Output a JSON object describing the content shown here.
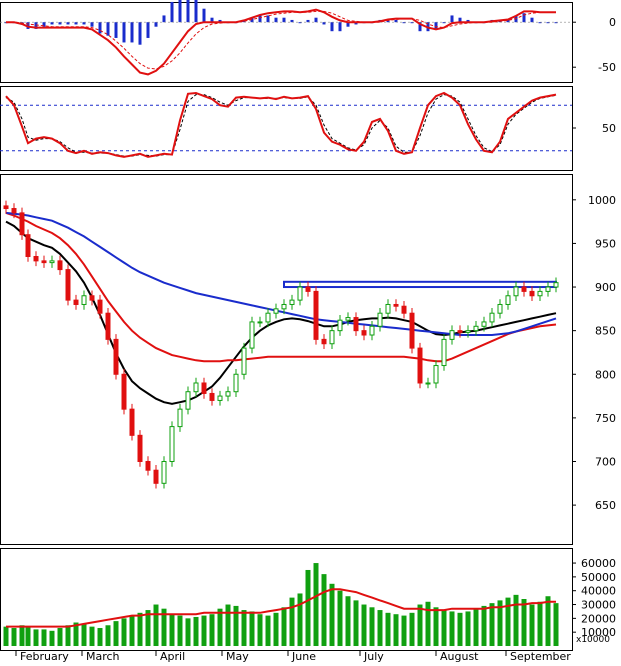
{
  "chart_data": [
    {
      "panel": "macd",
      "type": "line",
      "y_ticks": [
        0,
        -50
      ],
      "ylim": [
        -62,
        18
      ],
      "x": [
        0,
        8,
        16,
        22,
        30,
        38,
        46,
        54,
        62,
        70,
        78,
        86,
        94,
        102,
        110,
        118,
        126,
        134,
        142,
        150,
        158,
        166,
        174,
        182,
        190,
        198,
        206,
        214,
        222,
        230,
        238,
        246,
        254,
        262,
        270,
        278,
        286,
        294,
        302,
        310,
        318,
        326,
        334,
        342,
        350,
        358,
        366,
        374,
        382,
        390,
        398,
        406,
        414,
        422,
        430,
        438,
        446,
        454,
        462,
        470,
        478,
        486,
        494,
        502,
        510,
        518,
        526,
        534,
        542,
        550
      ],
      "series": [
        {
          "role": "macd",
          "color": "#e01010",
          "values": [
            0,
            0,
            -2,
            -5,
            -6,
            -6,
            -6,
            -6,
            -6,
            -6,
            -6,
            -8,
            -14,
            -20,
            -28,
            -38,
            -47,
            -56,
            -58,
            -54,
            -46,
            -34,
            -22,
            -10,
            -2,
            0,
            0,
            0,
            0,
            0,
            2,
            5,
            8,
            10,
            11,
            12,
            12,
            11,
            12,
            14,
            11,
            6,
            2,
            0,
            0,
            0,
            0,
            1,
            3,
            4,
            4,
            4,
            -2,
            -6,
            -8,
            -6,
            -1,
            0,
            0,
            0,
            0,
            1,
            2,
            3,
            7,
            12,
            12,
            11,
            11,
            11
          ]
        },
        {
          "role": "signal",
          "color": "#e01010",
          "dashed": true,
          "values": [
            0,
            0,
            -1,
            -2,
            -3,
            -4,
            -5,
            -5,
            -5,
            -5,
            -5,
            -6,
            -9,
            -14,
            -21,
            -29,
            -38,
            -46,
            -51,
            -52,
            -49,
            -43,
            -34,
            -23,
            -13,
            -6,
            -2,
            -1,
            0,
            0,
            1,
            3,
            5,
            7,
            9,
            10,
            11,
            11,
            11,
            12,
            12,
            10,
            6,
            2,
            1,
            0,
            0,
            0,
            2,
            3,
            4,
            4,
            2,
            -2,
            -5,
            -6,
            -4,
            -2,
            -1,
            0,
            0,
            0,
            1,
            2,
            4,
            8,
            10,
            11,
            11,
            11
          ]
        }
      ],
      "bars_color": "#1a2ccc"
    },
    {
      "panel": "stochastic",
      "type": "line",
      "y_ticks": [
        50
      ],
      "ylim": [
        0,
        100
      ],
      "levels": [
        80,
        20
      ],
      "x": [
        0,
        8,
        16,
        22,
        30,
        38,
        46,
        54,
        62,
        70,
        78,
        86,
        94,
        102,
        110,
        118,
        126,
        134,
        142,
        150,
        158,
        166,
        174,
        182,
        190,
        198,
        206,
        214,
        222,
        230,
        238,
        246,
        254,
        262,
        270,
        278,
        286,
        294,
        302,
        310,
        318,
        326,
        334,
        342,
        350,
        358,
        366,
        374,
        382,
        390,
        398,
        406,
        414,
        422,
        430,
        438,
        446,
        454,
        462,
        470,
        478,
        486,
        494,
        502,
        510,
        518,
        526,
        534,
        542,
        550
      ],
      "series": [
        {
          "role": "k",
          "color": "#e01010",
          "values": [
            92,
            80,
            52,
            30,
            36,
            38,
            36,
            30,
            20,
            17,
            20,
            16,
            18,
            17,
            14,
            12,
            14,
            16,
            12,
            14,
            16,
            15,
            60,
            95,
            96,
            92,
            88,
            80,
            78,
            90,
            91,
            90,
            89,
            90,
            88,
            91,
            89,
            90,
            92,
            75,
            44,
            32,
            28,
            22,
            20,
            32,
            58,
            62,
            46,
            20,
            16,
            18,
            50,
            80,
            92,
            96,
            90,
            80,
            55,
            35,
            20,
            18,
            32,
            62,
            70,
            78,
            86,
            90,
            92,
            94
          ]
        },
        {
          "role": "d",
          "color": "#000000",
          "dashed": true,
          "values": [
            90,
            84,
            62,
            38,
            34,
            36,
            36,
            32,
            24,
            18,
            18,
            17,
            17,
            17,
            15,
            13,
            13,
            15,
            14,
            13,
            15,
            15,
            48,
            85,
            94,
            94,
            90,
            84,
            80,
            86,
            90,
            90,
            89,
            89,
            89,
            90,
            89,
            89,
            91,
            80,
            54,
            36,
            30,
            24,
            21,
            28,
            50,
            60,
            50,
            26,
            18,
            18,
            40,
            70,
            88,
            94,
            92,
            84,
            62,
            40,
            24,
            19,
            28,
            55,
            68,
            76,
            84,
            89,
            91,
            93
          ]
        }
      ]
    },
    {
      "panel": "price",
      "type": "candlestick",
      "y_ticks": [
        1000,
        950,
        900,
        850,
        800,
        750,
        700,
        650
      ],
      "ylim": [
        610,
        1025
      ],
      "x": [
        0,
        8,
        16,
        22,
        30,
        38,
        46,
        54,
        62,
        70,
        78,
        86,
        94,
        102,
        110,
        118,
        126,
        134,
        142,
        150,
        158,
        166,
        174,
        182,
        190,
        198,
        206,
        214,
        222,
        230,
        238,
        246,
        254,
        262,
        270,
        278,
        286,
        294,
        302,
        310,
        318,
        326,
        334,
        342,
        350,
        358,
        366,
        374,
        382,
        390,
        398,
        406,
        414,
        422,
        430,
        438,
        446,
        454,
        462,
        470,
        478,
        486,
        494,
        502,
        510,
        518,
        526,
        534,
        542,
        550
      ],
      "close": [
        990,
        985,
        960,
        935,
        930,
        928,
        930,
        920,
        885,
        880,
        890,
        885,
        870,
        840,
        800,
        760,
        730,
        700,
        690,
        675,
        700,
        740,
        760,
        780,
        790,
        778,
        770,
        775,
        780,
        800,
        830,
        860,
        860,
        870,
        875,
        880,
        885,
        900,
        895,
        840,
        835,
        850,
        862,
        865,
        850,
        845,
        855,
        870,
        880,
        878,
        870,
        830,
        790,
        790,
        810,
        840,
        850,
        848,
        850,
        855,
        860,
        870,
        880,
        890,
        900,
        895,
        890,
        895,
        900,
        905
      ],
      "series": [
        {
          "name": "",
          "role": "ma_short",
          "color": "#000000",
          "values": [
            975,
            970,
            962,
            956,
            952,
            948,
            945,
            938,
            928,
            918,
            905,
            888,
            868,
            846,
            824,
            806,
            792,
            784,
            778,
            772,
            768,
            766,
            768,
            770,
            774,
            780,
            786,
            796,
            808,
            820,
            832,
            842,
            850,
            856,
            860,
            863,
            864,
            863,
            861,
            858,
            855,
            855,
            857,
            860,
            862,
            863,
            864,
            864,
            865,
            864,
            862,
            860,
            855,
            850,
            846,
            845,
            846,
            848,
            849,
            850,
            852,
            854,
            856,
            858,
            860,
            862,
            864,
            866,
            868,
            870
          ]
        },
        {
          "name": "",
          "role": "ma_mid",
          "color": "#e01010",
          "values": [
            985,
            982,
            978,
            975,
            970,
            966,
            962,
            956,
            948,
            938,
            926,
            912,
            898,
            884,
            872,
            860,
            850,
            842,
            836,
            830,
            826,
            822,
            820,
            818,
            816,
            815,
            815,
            815,
            816,
            816,
            817,
            818,
            819,
            820,
            820,
            820,
            820,
            820,
            820,
            820,
            820,
            820,
            820,
            820,
            820,
            820,
            820,
            820,
            820,
            820,
            820,
            819,
            818,
            816,
            815,
            815,
            818,
            822,
            826,
            830,
            834,
            838,
            842,
            846,
            849,
            851,
            853,
            855,
            856,
            857
          ]
        },
        {
          "name": "",
          "role": "ma_long",
          "color": "#1a2ccc",
          "values": [
            985,
            984,
            983,
            982,
            980,
            978,
            976,
            972,
            968,
            963,
            958,
            952,
            946,
            940,
            934,
            928,
            922,
            917,
            913,
            909,
            905,
            902,
            899,
            896,
            893,
            891,
            889,
            887,
            885,
            883,
            881,
            879,
            877,
            875,
            873,
            871,
            869,
            867,
            865,
            863,
            862,
            861,
            860,
            859,
            858,
            857,
            856,
            855,
            854,
            853,
            852,
            851,
            850,
            849,
            848,
            847,
            846,
            845,
            845,
            845,
            845,
            845,
            846,
            847,
            849,
            852,
            855,
            858,
            861,
            864
          ]
        }
      ],
      "resistance": [
        900,
        906
      ]
    },
    {
      "panel": "volume",
      "type": "bar",
      "y_ticks": [
        "60000",
        "50000",
        "40000",
        "30000",
        "20000",
        "10000"
      ],
      "y_tick_values": [
        60000,
        50000,
        40000,
        30000,
        20000,
        10000
      ],
      "unit_label": "x10000",
      "ylim": [
        0,
        68000
      ],
      "bar_color": "#10a010",
      "ma_color": "#e01010",
      "x": [
        0,
        8,
        16,
        22,
        30,
        38,
        46,
        54,
        62,
        70,
        78,
        86,
        94,
        102,
        110,
        118,
        126,
        134,
        142,
        150,
        158,
        166,
        174,
        182,
        190,
        198,
        206,
        214,
        222,
        230,
        238,
        246,
        254,
        262,
        270,
        278,
        286,
        294,
        302,
        310,
        318,
        326,
        334,
        342,
        350,
        358,
        366,
        374,
        382,
        390,
        398,
        406,
        414,
        422,
        430,
        438,
        446,
        454,
        462,
        470,
        478,
        486,
        494,
        502,
        510,
        518,
        526,
        534,
        542,
        550
      ],
      "values": [
        14000,
        13000,
        15000,
        14000,
        12000,
        12000,
        11000,
        13000,
        15000,
        17000,
        16000,
        14000,
        13000,
        15000,
        18000,
        20000,
        22000,
        24000,
        26000,
        30000,
        27000,
        23000,
        22000,
        20000,
        21000,
        22000,
        23000,
        27000,
        30000,
        29000,
        26000,
        25000,
        23000,
        22000,
        24000,
        28000,
        35000,
        38000,
        55000,
        60000,
        52000,
        45000,
        40000,
        36000,
        33000,
        30000,
        28000,
        26000,
        24000,
        23000,
        22000,
        24000,
        30000,
        32000,
        28000,
        26000,
        25000,
        24000,
        25000,
        27000,
        29000,
        31000,
        33000,
        35000,
        37000,
        34000,
        30000,
        32000,
        36000,
        31000
      ],
      "ma": [
        14000,
        14000,
        14000,
        14000,
        14000,
        14000,
        14000,
        14000,
        14000,
        15000,
        16000,
        17000,
        18000,
        19000,
        20000,
        21000,
        22000,
        22000,
        23000,
        23000,
        23000,
        23000,
        23000,
        23000,
        23000,
        24000,
        24000,
        24000,
        24000,
        24000,
        24000,
        24000,
        24000,
        25000,
        26000,
        27000,
        28000,
        30000,
        33000,
        36000,
        39000,
        41000,
        41000,
        40000,
        39000,
        37000,
        35000,
        33000,
        31000,
        29000,
        27000,
        27000,
        27000,
        26000,
        26000,
        26000,
        27000,
        27000,
        27000,
        27000,
        27000,
        28000,
        28000,
        29000,
        30000,
        30000,
        31000,
        31000,
        32000,
        32000
      ]
    }
  ],
  "months": [
    "February",
    "March",
    "April",
    "May",
    "June",
    "July",
    "August",
    "September"
  ]
}
